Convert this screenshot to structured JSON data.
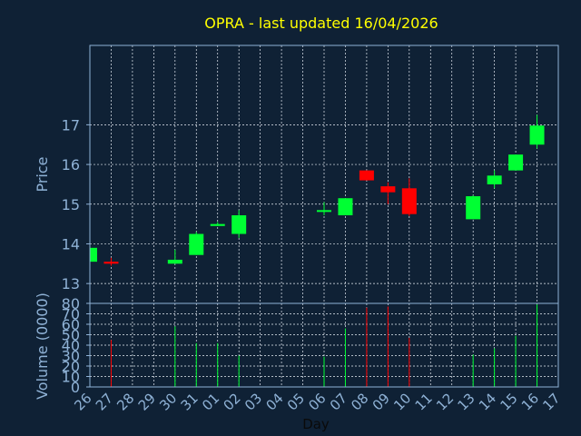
{
  "chart_data": {
    "type": "candlestick",
    "title": "OPRA - last updated 16/04/2026",
    "xlabel": "Day",
    "ylabel_price": "Price",
    "ylabel_volume": "Volume (0000)",
    "price_ylim": [
      12.5,
      19.0
    ],
    "price_ticks": [
      13,
      14,
      15,
      16,
      17
    ],
    "volume_ylim": [
      0,
      80
    ],
    "volume_ticks": [
      0,
      10,
      20,
      30,
      40,
      50,
      60,
      70,
      80
    ],
    "x_ticks": [
      "26",
      "27",
      "28",
      "29",
      "30",
      "31",
      "01",
      "02",
      "03",
      "04",
      "05",
      "06",
      "07",
      "08",
      "09",
      "10",
      "11",
      "12",
      "13",
      "14",
      "15",
      "16",
      "17"
    ],
    "grid": true,
    "colors": {
      "up": "#00ff33",
      "down": "#ff0000",
      "background": "#0f2135",
      "title": "#ffff00",
      "axis_text": "#8fb2d6",
      "grid": "#e8eef5"
    },
    "candles": [
      {
        "day": "26",
        "open": 13.55,
        "high": 13.95,
        "low": 13.5,
        "close": 13.9,
        "volume": 0
      },
      {
        "day": "27",
        "open": 13.55,
        "high": 13.65,
        "low": 13.45,
        "close": 13.5,
        "volume": 45
      },
      {
        "day": "30",
        "open": 13.5,
        "high": 13.85,
        "low": 13.5,
        "close": 13.6,
        "volume": 58
      },
      {
        "day": "31",
        "open": 13.72,
        "high": 14.3,
        "low": 13.72,
        "close": 14.25,
        "volume": 42
      },
      {
        "day": "01",
        "open": 14.45,
        "high": 14.55,
        "low": 14.45,
        "close": 14.5,
        "volume": 42
      },
      {
        "day": "02",
        "open": 14.25,
        "high": 14.85,
        "low": 14.15,
        "close": 14.72,
        "volume": 30
      },
      {
        "day": "06",
        "open": 14.82,
        "high": 15.05,
        "low": 14.72,
        "close": 14.85,
        "volume": 29
      },
      {
        "day": "07",
        "open": 14.72,
        "high": 15.15,
        "low": 14.72,
        "close": 15.15,
        "volume": 56
      },
      {
        "day": "08",
        "open": 15.85,
        "high": 15.85,
        "low": 15.6,
        "close": 15.6,
        "volume": 76
      },
      {
        "day": "09",
        "open": 15.45,
        "high": 15.55,
        "low": 15.0,
        "close": 15.3,
        "volume": 77
      },
      {
        "day": "10",
        "open": 15.4,
        "high": 15.65,
        "low": 14.7,
        "close": 14.75,
        "volume": 47
      },
      {
        "day": "13",
        "open": 14.62,
        "high": 15.22,
        "low": 14.62,
        "close": 15.2,
        "volume": 31
      },
      {
        "day": "14",
        "open": 15.5,
        "high": 15.85,
        "low": 15.4,
        "close": 15.72,
        "volume": 37
      },
      {
        "day": "15",
        "open": 15.85,
        "high": 16.25,
        "low": 15.85,
        "close": 16.25,
        "volume": 49
      },
      {
        "day": "16",
        "open": 16.5,
        "high": 17.25,
        "low": 16.4,
        "close": 16.98,
        "volume": 79
      }
    ]
  }
}
